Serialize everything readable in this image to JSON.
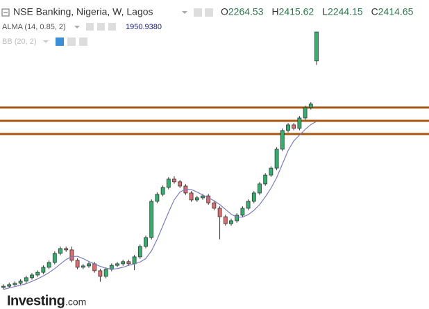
{
  "chart_data": {
    "type": "candlestick",
    "title": "NSE Banking, Nigeria, W, Lagos",
    "ohlc_labels": [
      "O",
      "H",
      "L",
      "C"
    ],
    "up_color": "#2fb36c",
    "down_color": "#e36b6b",
    "open": [
      1090,
      1097,
      1105,
      1112,
      1123,
      1141,
      1155,
      1169,
      1195,
      1220,
      1267,
      1292,
      1285,
      1231,
      1195,
      1202,
      1213,
      1177,
      1148,
      1184,
      1205,
      1213,
      1224,
      1213,
      1249,
      1303,
      1349,
      1537,
      1573,
      1609,
      1652,
      1638,
      1616,
      1580,
      1544,
      1555,
      1565,
      1529,
      1501,
      1457,
      1421,
      1436,
      1465,
      1501,
      1537,
      1580,
      1627,
      1673,
      1709,
      1807,
      1904,
      1933,
      1915,
      1969,
      2023,
      2264.53
    ],
    "high": [
      1107,
      1115,
      1122,
      1133,
      1151,
      1165,
      1179,
      1205,
      1230,
      1277,
      1302,
      1302,
      1302,
      1241,
      1212,
      1223,
      1223,
      1187,
      1194,
      1215,
      1223,
      1234,
      1234,
      1259,
      1313,
      1359,
      1547,
      1583,
      1619,
      1662,
      1667,
      1648,
      1626,
      1590,
      1565,
      1575,
      1575,
      1539,
      1511,
      1467,
      1446,
      1475,
      1511,
      1547,
      1590,
      1637,
      1683,
      1719,
      1817,
      1914,
      1943,
      1943,
      1979,
      2033,
      2051,
      2415.62
    ],
    "low": [
      1080,
      1087,
      1095,
      1102,
      1113,
      1131,
      1145,
      1159,
      1185,
      1210,
      1257,
      1275,
      1221,
      1185,
      1185,
      1192,
      1167,
      1120,
      1138,
      1174,
      1195,
      1203,
      1203,
      1180,
      1239,
      1293,
      1339,
      1527,
      1563,
      1599,
      1628,
      1606,
      1570,
      1534,
      1534,
      1545,
      1519,
      1491,
      1340,
      1411,
      1411,
      1426,
      1455,
      1491,
      1527,
      1570,
      1617,
      1663,
      1699,
      1797,
      1894,
      1905,
      1905,
      1959,
      2013,
      2244.15
    ],
    "close": [
      1097,
      1105,
      1112,
      1123,
      1141,
      1155,
      1169,
      1195,
      1220,
      1267,
      1292,
      1285,
      1231,
      1195,
      1202,
      1213,
      1177,
      1148,
      1184,
      1205,
      1213,
      1224,
      1213,
      1249,
      1303,
      1349,
      1537,
      1573,
      1609,
      1652,
      1638,
      1616,
      1580,
      1544,
      1555,
      1565,
      1529,
      1501,
      1457,
      1421,
      1436,
      1465,
      1501,
      1537,
      1580,
      1627,
      1673,
      1709,
      1807,
      1904,
      1933,
      1915,
      1969,
      2023,
      2041,
      2414.65
    ],
    "indicators": [
      {
        "name": "ALMA (14, 0.85, 2)",
        "color": "#7b7bc4",
        "values": [
          1080,
          1088,
          1095,
          1102,
          1110,
          1122,
          1135,
          1150,
          1167,
          1188,
          1212,
          1235,
          1250,
          1252,
          1240,
          1225,
          1212,
          1200,
          1190,
          1185,
          1188,
          1195,
          1205,
          1212,
          1222,
          1240,
          1280,
          1340,
          1410,
          1480,
          1545,
          1585,
          1600,
          1598,
          1585,
          1570,
          1555,
          1540,
          1520,
          1495,
          1470,
          1455,
          1455,
          1468,
          1490,
          1520,
          1560,
          1605,
          1660,
          1730,
          1800,
          1850,
          1880,
          1910,
          1935,
          1950.938
        ],
        "value_labels": [
          null,
          null,
          null,
          null,
          null,
          null,
          null,
          null,
          null,
          null,
          null,
          null,
          null,
          null,
          null,
          null,
          null,
          null,
          null,
          null,
          null,
          null,
          null,
          null,
          null,
          null,
          null,
          null,
          null,
          null,
          null,
          null,
          null,
          null,
          null,
          null,
          null,
          null,
          null,
          null,
          null,
          null,
          null,
          null,
          null,
          null,
          null,
          null,
          null,
          null,
          null,
          null,
          null,
          null,
          null,
          "1950.9380"
        ]
      },
      {
        "name": "BB (20, 2)"
      }
    ],
    "hlines": [
      2023,
      1954,
      1886
    ],
    "hline_color": "#a8560f",
    "ylim": [
      978.6,
      2580.6
    ],
    "brand": "Investing",
    "brand_suffix": ".com"
  }
}
